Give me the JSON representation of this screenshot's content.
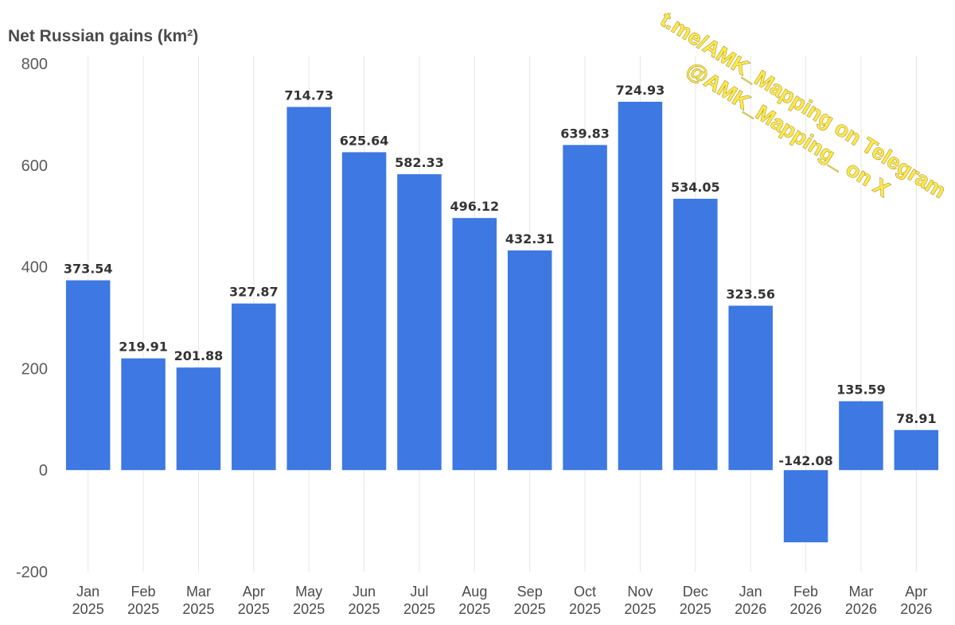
{
  "chart_data": {
    "type": "bar",
    "title": "Net Russian gains (km²)",
    "xlabel": "",
    "ylabel": "",
    "categories": [
      [
        "Jan",
        "2025"
      ],
      [
        "Feb",
        "2025"
      ],
      [
        "Mar",
        "2025"
      ],
      [
        "Apr",
        "2025"
      ],
      [
        "May",
        "2025"
      ],
      [
        "Jun",
        "2025"
      ],
      [
        "Jul",
        "2025"
      ],
      [
        "Aug",
        "2025"
      ],
      [
        "Sep",
        "2025"
      ],
      [
        "Oct",
        "2025"
      ],
      [
        "Nov",
        "2025"
      ],
      [
        "Dec",
        "2025"
      ],
      [
        "Jan",
        "2026"
      ],
      [
        "Feb",
        "2026"
      ],
      [
        "Mar",
        "2026"
      ],
      [
        "Apr",
        "2026"
      ]
    ],
    "values": [
      373.54,
      219.91,
      201.88,
      327.87,
      714.73,
      625.64,
      582.33,
      496.12,
      432.31,
      639.83,
      724.93,
      534.05,
      323.56,
      -142.08,
      135.59,
      78.91
    ],
    "value_labels": [
      "373.54",
      "219.91",
      "201.88",
      "327.87",
      "714.73",
      "625.64",
      "582.33",
      "496.12",
      "432.31",
      "639.83",
      "724.93",
      "534.05",
      "323.56",
      "-142.08",
      "135.59",
      "78.91"
    ],
    "ylim": [
      -200,
      800
    ],
    "yticks": [
      800,
      600,
      400,
      200,
      0,
      -200
    ],
    "grid": "vertical",
    "bar_color": "#3d78e3"
  },
  "watermark": {
    "line1": "t.me/AMK_Mapping on Telegram",
    "line2": "@AMK_Mapping_ on X"
  }
}
